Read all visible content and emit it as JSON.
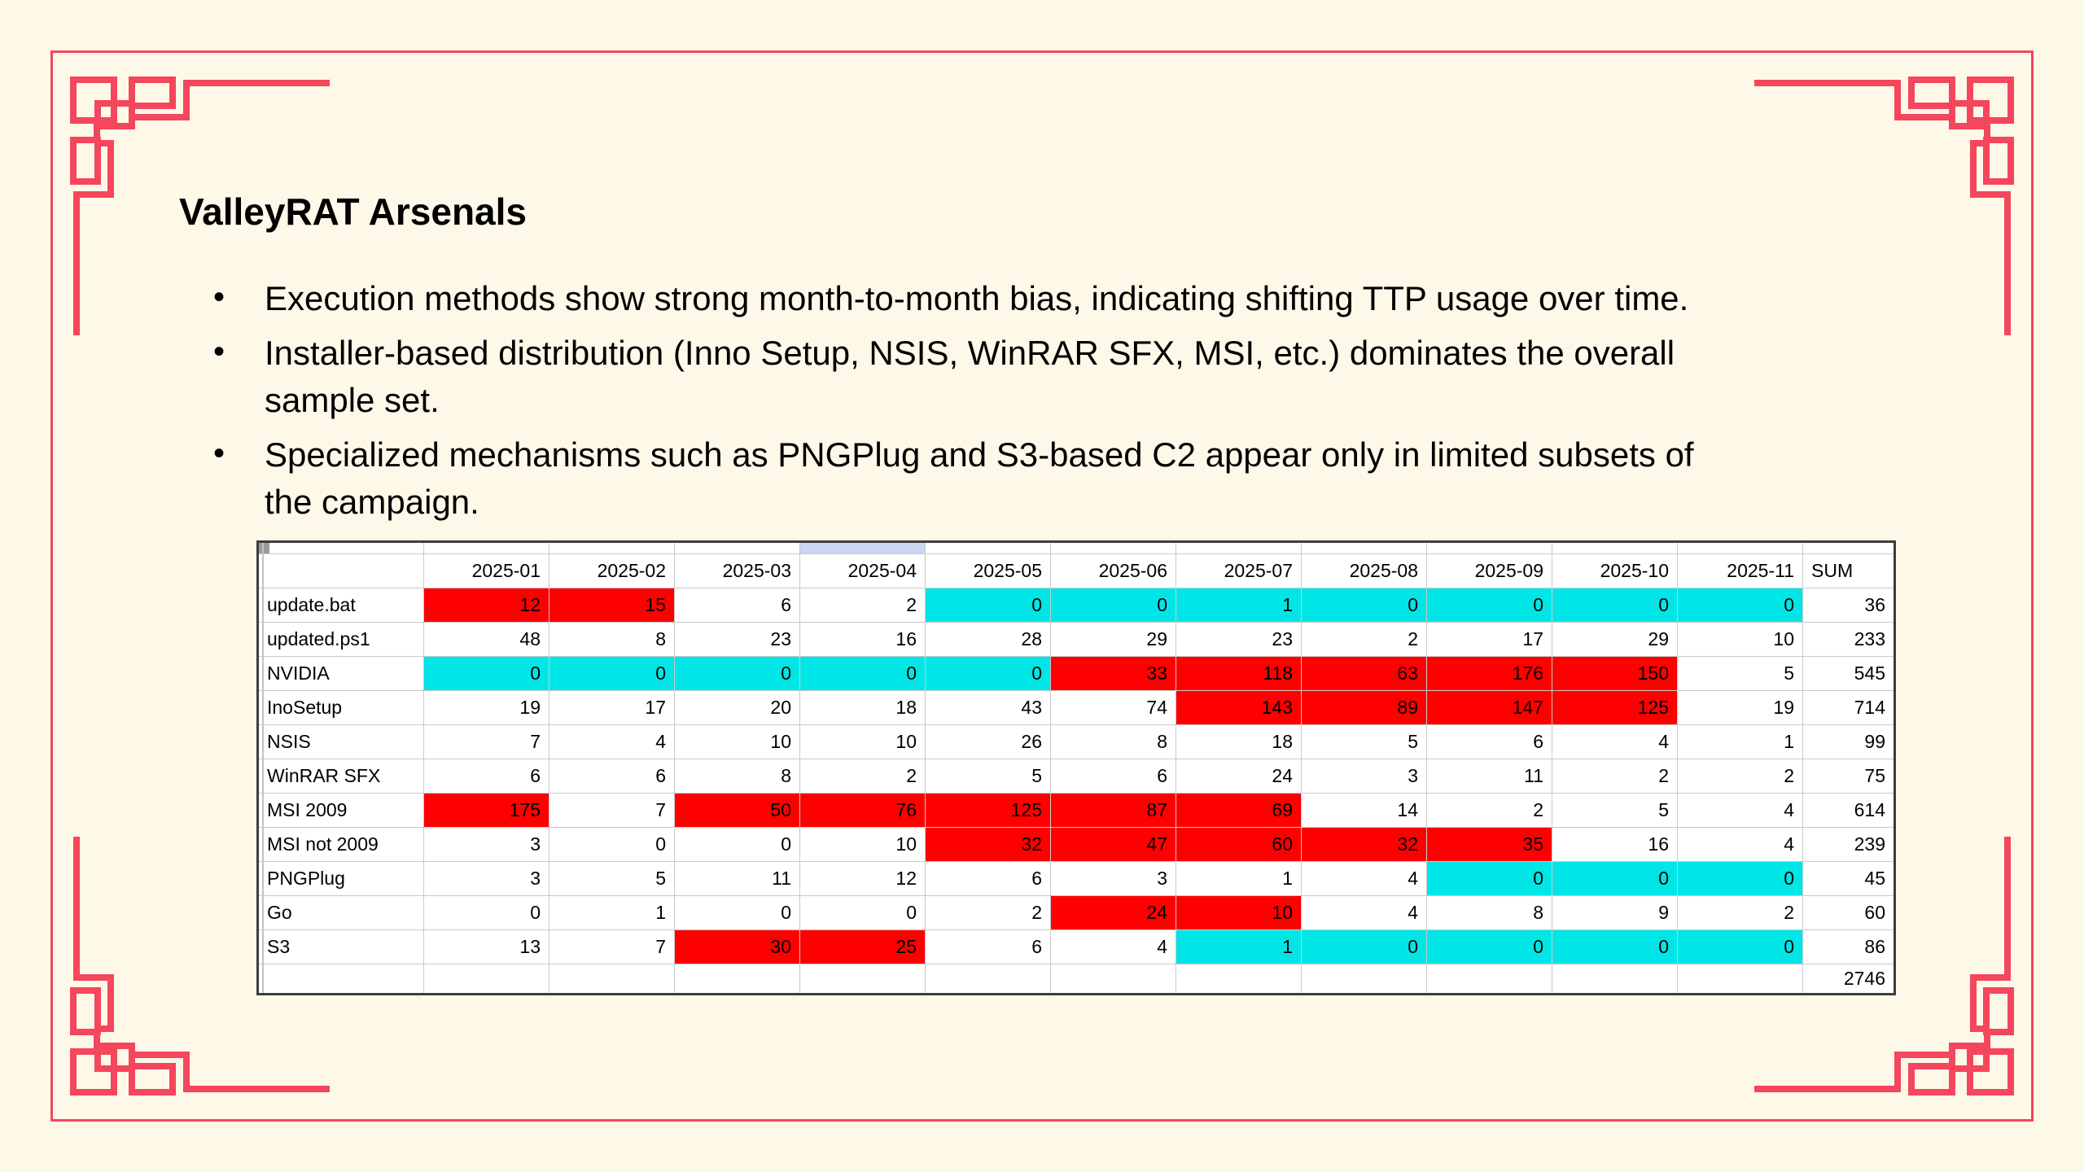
{
  "slide": {
    "title": "ValleyRAT Arsenals",
    "bullets": [
      "Execution methods show strong month-to-month bias, indicating shifting TTP usage over time.",
      "Installer-based distribution (Inno Setup, NSIS, WinRAR SFX, MSI, etc.) dominates the overall\nsample set.",
      "Specialized mechanisms such as PNGPlug and S3-based C2 appear only in limited subsets of\nthe campaign."
    ]
  },
  "table": {
    "months": [
      "2025-01",
      "2025-02",
      "2025-03",
      "2025-04",
      "2025-05",
      "2025-06",
      "2025-07",
      "2025-08",
      "2025-09",
      "2025-10",
      "2025-11"
    ],
    "sum_header": "SUM",
    "highlighted_month": "2025-04",
    "rows": [
      {
        "label": "update.bat",
        "values": [
          12,
          15,
          6,
          2,
          0,
          0,
          1,
          0,
          0,
          0,
          0
        ],
        "sum": 36,
        "fills": "RRWWCCCCCCC"
      },
      {
        "label": "updated.ps1",
        "values": [
          48,
          8,
          23,
          16,
          28,
          29,
          23,
          2,
          17,
          29,
          10
        ],
        "sum": 233,
        "fills": "WWWWWWWWWWW"
      },
      {
        "label": "NVIDIA",
        "values": [
          0,
          0,
          0,
          0,
          0,
          33,
          118,
          63,
          176,
          150,
          5
        ],
        "sum": 545,
        "fills": "CCCCCRRRRRW"
      },
      {
        "label": "InoSetup",
        "values": [
          19,
          17,
          20,
          18,
          43,
          74,
          143,
          89,
          147,
          125,
          19
        ],
        "sum": 714,
        "fills": "WWWWWWRRRRW"
      },
      {
        "label": "NSIS",
        "values": [
          7,
          4,
          10,
          10,
          26,
          8,
          18,
          5,
          6,
          4,
          1
        ],
        "sum": 99,
        "fills": "WWWWWWWWWWW"
      },
      {
        "label": "WinRAR SFX",
        "values": [
          6,
          6,
          8,
          2,
          5,
          6,
          24,
          3,
          11,
          2,
          2
        ],
        "sum": 75,
        "fills": "WWWWWWWWWWW"
      },
      {
        "label": "MSI 2009",
        "values": [
          175,
          7,
          50,
          76,
          125,
          87,
          69,
          14,
          2,
          5,
          4
        ],
        "sum": 614,
        "fills": "RWRRRRRWWWW"
      },
      {
        "label": "MSI not 2009",
        "values": [
          3,
          0,
          0,
          10,
          32,
          47,
          60,
          32,
          35,
          16,
          4
        ],
        "sum": 239,
        "fills": "WWWWRRRRRWW"
      },
      {
        "label": "PNGPlug",
        "values": [
          3,
          5,
          11,
          12,
          6,
          3,
          1,
          4,
          0,
          0,
          0
        ],
        "sum": 45,
        "fills": "WWWWWWWWCCC"
      },
      {
        "label": "Go",
        "values": [
          0,
          1,
          0,
          0,
          2,
          24,
          10,
          4,
          8,
          9,
          2
        ],
        "sum": 60,
        "fills": "WWWWWRRWWWW"
      },
      {
        "label": "S3",
        "values": [
          13,
          7,
          30,
          25,
          6,
          4,
          1,
          0,
          0,
          0,
          0
        ],
        "sum": 86,
        "fills": "WWRRWWCCCCC"
      }
    ],
    "grand_total": 2746
  },
  "colors": {
    "background": "#fdf8e8",
    "accent_red": "#f4465c",
    "cell_red": "#fe0000",
    "cell_cyan": "#00e6e6",
    "strip_highlight": "#c9d5f1",
    "table_border": "#3d3d3d",
    "grid_line": "#c9c9c9"
  }
}
